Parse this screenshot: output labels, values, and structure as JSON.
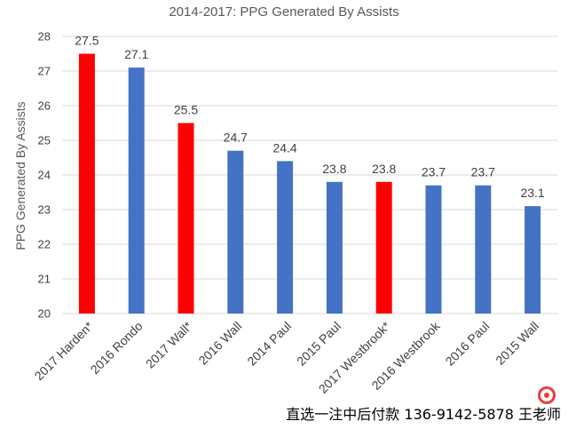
{
  "chart_data": {
    "type": "bar",
    "title": "2014-2017: PPG Generated By Assists",
    "xlabel": "",
    "ylabel": "PPG Generated By Assists",
    "ylim": [
      20,
      28
    ],
    "yticks": [
      20,
      21,
      22,
      23,
      24,
      25,
      26,
      27,
      28
    ],
    "grid": true,
    "categories": [
      "2017 Harden*",
      "2016 Rondo",
      "2017 Wall*",
      "2016 Wall",
      "2014 Paul",
      "2015 Paul",
      "2017 Westbrook*",
      "2016 Westbrook",
      "2016 Paul",
      "2015 Wall"
    ],
    "values": [
      27.5,
      27.1,
      25.5,
      24.7,
      24.4,
      23.8,
      23.8,
      23.7,
      23.7,
      23.1
    ],
    "data_labels": [
      "27.5",
      "27.1",
      "25.5",
      "24.7",
      "24.4",
      "23.8",
      "23.8",
      "23.7",
      "23.7",
      "23.1"
    ],
    "highlight": [
      true,
      false,
      true,
      false,
      false,
      false,
      true,
      false,
      false,
      false
    ],
    "colors": {
      "highlight": "#ff0000",
      "default": "#4472c4"
    }
  },
  "footer": {
    "text": "直选一注中后付款 136-9142-5878 王老师",
    "badge_icon": "red-circle-logo-icon"
  }
}
